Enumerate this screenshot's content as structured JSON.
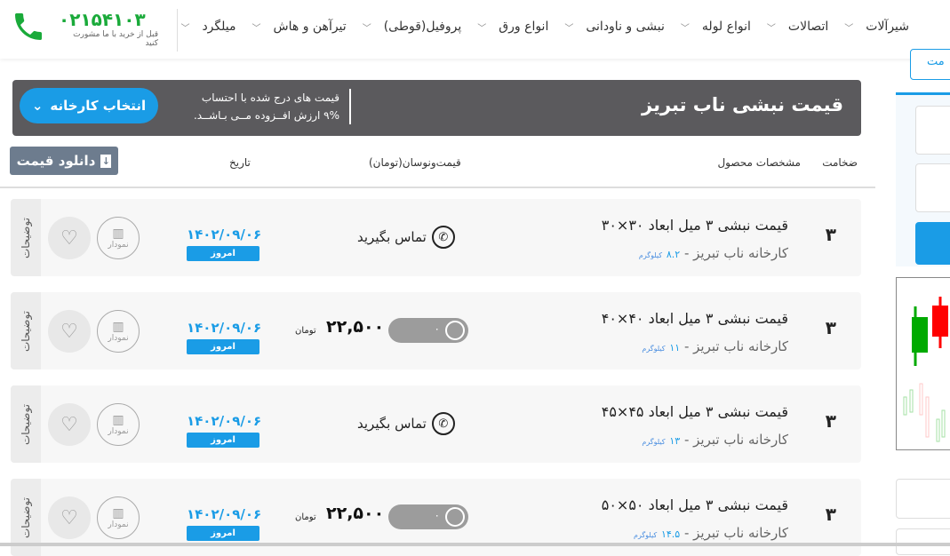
{
  "header": {
    "phone": "۰۲۱۵۴۱۰۳",
    "phone_sub": "قبل از خرید با ما مشورت کنید",
    "nav": [
      "میلگرد",
      "تیرآهن و هاش",
      "پروفیل(قوطی)",
      "انواع ورق",
      "نبشی و ناودانی",
      "انواع لوله",
      "اتصالات",
      "شیرآلات"
    ]
  },
  "banner": {
    "title": "قیمت نبشی ناب تبریز",
    "note_line1": "قیمت های درج شده با احتساب",
    "note_line2": "۹% ارزش افــزوده مــی بـاشــد.",
    "factory_button": "انتخاب کارخانه"
  },
  "table": {
    "download_button": "دانلود قیمت",
    "headers": {
      "thickness": "ضخامت",
      "specs": "مشخصات محصول",
      "price": "قیمت‌ونوسان(تومان)",
      "date": "تاریخ"
    },
    "rows": [
      {
        "thickness": "۳",
        "name": "قیمت نبشی ۳ میل ابعاد ۳۰×۳۰",
        "factory": "کارخانه ناب تبریز - ",
        "weight": "۸.۲",
        "weight_unit": "کیلوگرم",
        "price_type": "call",
        "call_label": "تماس بگیرید",
        "date": "۱۴۰۲/۰۹/۰۶",
        "today": "امروز",
        "chart_label": "نمودار",
        "desc_label": "توضیحات"
      },
      {
        "thickness": "۳",
        "name": "قیمت نبشی ۳ میل ابعاد ۴۰×۴۰",
        "factory": "کارخانه ناب تبریز - ",
        "weight": "۱۱",
        "weight_unit": "کیلوگرم",
        "price_type": "price",
        "price": "۲۲,۵۰۰",
        "price_unit": "تومان",
        "change": "۰",
        "date": "۱۴۰۲/۰۹/۰۶",
        "today": "امروز",
        "chart_label": "نمودار",
        "desc_label": "توضیحات"
      },
      {
        "thickness": "۳",
        "name": "قیمت نبشی ۳ میل ابعاد ۴۵×۴۵",
        "factory": "کارخانه ناب تبریز - ",
        "weight": "۱۳",
        "weight_unit": "کیلوگرم",
        "price_type": "call",
        "call_label": "تماس بگیرید",
        "date": "۱۴۰۲/۰۹/۰۶",
        "today": "امروز",
        "chart_label": "نمودار",
        "desc_label": "توضیحات"
      },
      {
        "thickness": "۳",
        "name": "قیمت نبشی ۳ میل ابعاد ۵۰×۵۰",
        "factory": "کارخانه ناب تبریز - ",
        "weight": "۱۴.۵",
        "weight_unit": "کیلوگرم",
        "price_type": "price",
        "price": "۲۲,۵۰۰",
        "price_unit": "تومان",
        "change": "۰",
        "date": "۱۴۰۲/۰۹/۰۶",
        "today": "امروز",
        "chart_label": "نمودار",
        "desc_label": "توضیحات"
      }
    ]
  },
  "sidebar": {
    "partial_tab": "مت"
  },
  "colors": {
    "accent": "#1a9ce6",
    "banner": "#5b5a5d",
    "phone_green": "#1aaa3a"
  }
}
